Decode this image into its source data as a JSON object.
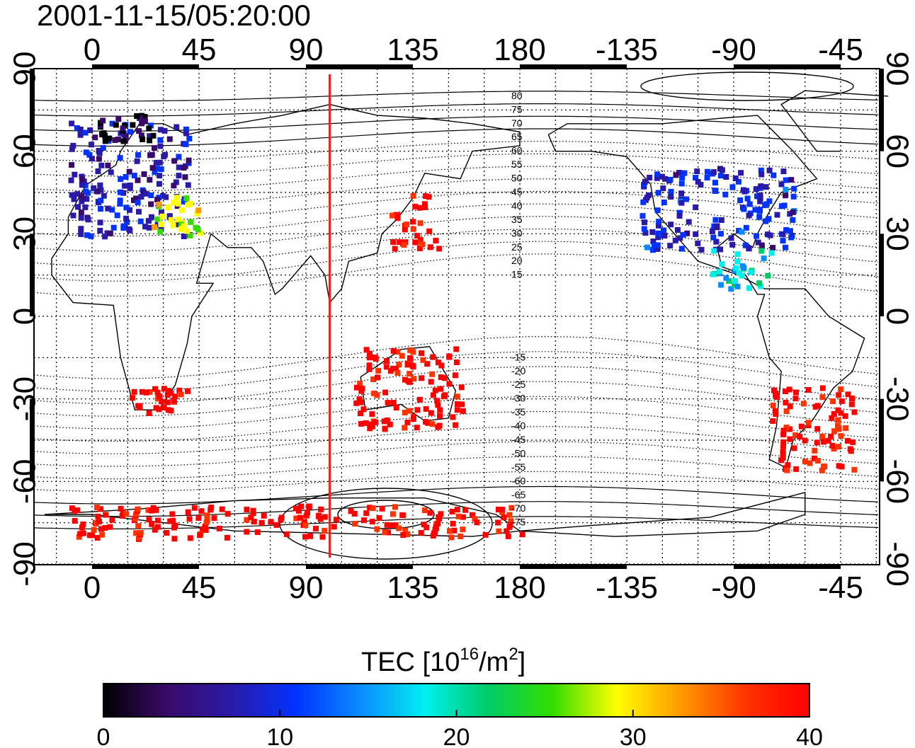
{
  "title": "2001-11-15/05:20:00",
  "map": {
    "lon_ticks": [
      "0",
      "45",
      "90",
      "135",
      "180",
      "-135",
      "-90",
      "-45"
    ],
    "lat_ticks": [
      "90",
      "60",
      "30",
      "0",
      "-30",
      "-60",
      "-90"
    ],
    "meridian_line": {
      "lon": 100,
      "color": "#e8231a"
    }
  },
  "contour_labels_north": [
    "80",
    "75",
    "70",
    "65",
    "60",
    "55",
    "50",
    "45",
    "40",
    "35",
    "30",
    "25",
    "20",
    "15"
  ],
  "contour_labels_south": [
    "-15",
    "-20",
    "-25",
    "-30",
    "-35",
    "-40",
    "-45",
    "-50",
    "-55",
    "-60",
    "-65",
    "-70",
    "-75"
  ],
  "colorbar": {
    "label_main": "TEC  [10",
    "label_sup1": "16",
    "label_mid": "/m",
    "label_sup2": "2",
    "label_end": "]",
    "ticks": [
      "0",
      "10",
      "20",
      "30",
      "40"
    ],
    "range": [
      0,
      40
    ],
    "colors": [
      "#000000",
      "#3a0a6a",
      "#2a1aa8",
      "#0033ff",
      "#0a8cff",
      "#00f0f0",
      "#00cc66",
      "#33dd00",
      "#ffff00",
      "#ff9900",
      "#ff3300",
      "#ff0000"
    ]
  },
  "chart_data": {
    "type": "heatmap",
    "title": "2001-11-15/05:20:00",
    "colorbar_label": "TEC [10^16/m^2]",
    "value_range": [
      0,
      40
    ],
    "regions": [
      {
        "lon": [
          -10,
          40
        ],
        "lat": [
          30,
          72
        ],
        "tec": 8
      },
      {
        "lon": [
          0,
          25
        ],
        "lat": [
          64,
          74
        ],
        "tec": 1
      },
      {
        "lon": [
          25,
          45
        ],
        "lat": [
          30,
          45
        ],
        "tec": 28
      },
      {
        "lon": [
          -130,
          -65
        ],
        "lat": [
          25,
          55
        ],
        "tec": 9
      },
      {
        "lon": [
          -100,
          -75
        ],
        "lat": [
          10,
          25
        ],
        "tec": 18
      },
      {
        "lon": [
          125,
          145
        ],
        "lat": [
          25,
          45
        ],
        "tec": 40
      },
      {
        "lon": [
          110,
          155
        ],
        "lat": [
          -40,
          -10
        ],
        "tec": 40
      },
      {
        "lon": [
          -75,
          -40
        ],
        "lat": [
          -55,
          -25
        ],
        "tec": 40
      },
      {
        "lon": [
          -10,
          180
        ],
        "lat": [
          -80,
          -68
        ],
        "tec": 40
      },
      {
        "lon": [
          15,
          40
        ],
        "lat": [
          -35,
          -25
        ],
        "tec": 40
      }
    ]
  }
}
